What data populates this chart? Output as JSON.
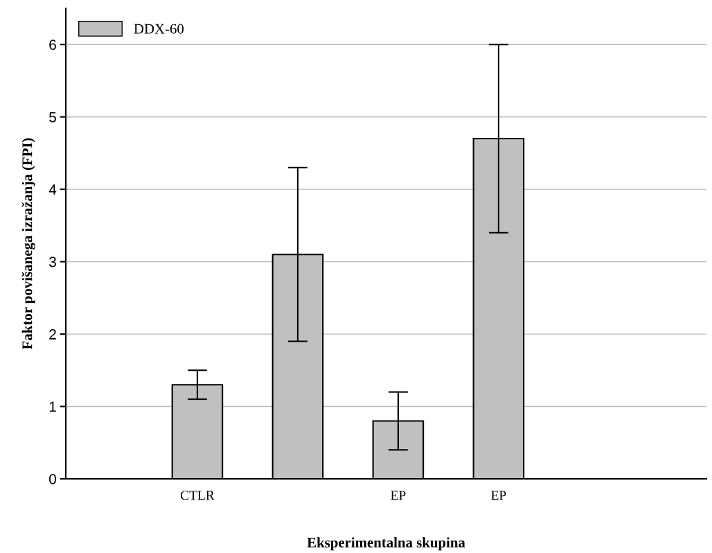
{
  "chart_data": {
    "type": "bar",
    "xlabel": "Eksperimentalna skupina",
    "ylabel": "Faktor povišanega izražanja (FPI)",
    "categories": [
      "CTLR",
      null,
      "EP",
      "EP"
    ],
    "series": [
      {
        "name": "DDX-60",
        "color": "#c0c0c0",
        "values": [
          1.3,
          3.1,
          0.8,
          4.7
        ],
        "errors": [
          0.2,
          1.2,
          0.4,
          1.3
        ]
      }
    ],
    "ylim": [
      0,
      6.5
    ],
    "yticks": [
      0,
      1,
      2,
      3,
      4,
      5,
      6
    ],
    "grid": "y",
    "legend": "top left"
  }
}
